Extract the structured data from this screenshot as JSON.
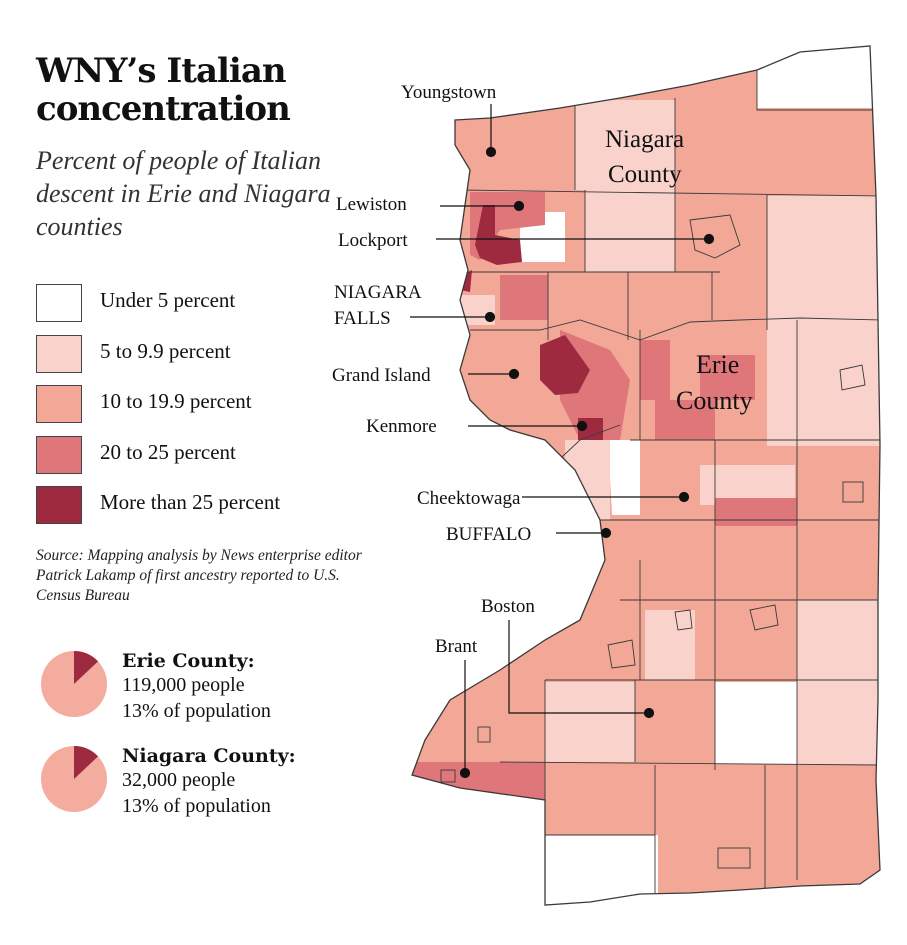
{
  "title": "WNY’s Italian concentration",
  "subtitle": "Percent of people of Italian descent in Erie and Niagara counties",
  "legend": {
    "items": [
      {
        "label": "Under 5 percent",
        "color": "#ffffff"
      },
      {
        "label": "5 to 9.9 percent",
        "color": "#f9d2cc"
      },
      {
        "label": "10 to 19.9 percent",
        "color": "#f2a797"
      },
      {
        "label": "20 to 25 percent",
        "color": "#de767a"
      },
      {
        "label": "More than 25 percent",
        "color": "#9e2a40"
      }
    ]
  },
  "source": "Source: Mapping analysis by News enterprise editor Patrick Lakamp of first ancestry reported to U.S. Census Bureau",
  "stats": [
    {
      "name": "Erie County:",
      "people": "119,000 people",
      "share": "13% of population",
      "share_value": 0.13
    },
    {
      "name": "Niagara County:",
      "people": "32,000 people",
      "share": "13% of population",
      "share_value": 0.13
    }
  ],
  "colors": {
    "pie_base": "#f4ac9e",
    "pie_slice": "#9e2a40",
    "border": "#3a3a3a"
  },
  "counties": {
    "niagara_1": "Niagara",
    "niagara_2": "County",
    "erie_1": "Erie",
    "erie_2": "County"
  },
  "places": {
    "youngstown": "Youngstown",
    "lewiston": "Lewiston",
    "lockport": "Lockport",
    "niagara_falls_1": "NIAGARA",
    "niagara_falls_2": "FALLS",
    "grand_island": "Grand Island",
    "kenmore": "Kenmore",
    "cheektowaga": "Cheektowaga",
    "buffalo": "BUFFALO",
    "boston": "Boston",
    "brant": "Brant"
  }
}
